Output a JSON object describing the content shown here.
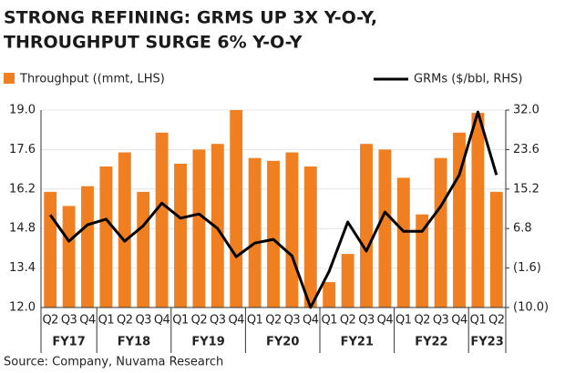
{
  "chart_data": {
    "type": "bar-line",
    "title": [
      "STRONG REFINING: GRMS UP 3X Y-O-Y,",
      "THROUGHPUT SURGE 6% Y-O-Y"
    ],
    "groups": [
      {
        "label": "FY17",
        "quarters": [
          "Q2",
          "Q3",
          "Q4"
        ]
      },
      {
        "label": "FY18",
        "quarters": [
          "Q1",
          "Q2",
          "Q3",
          "Q4"
        ]
      },
      {
        "label": "FY19",
        "quarters": [
          "Q1",
          "Q2",
          "Q3",
          "Q4"
        ]
      },
      {
        "label": "FY20",
        "quarters": [
          "Q1",
          "Q2",
          "Q3",
          "Q4"
        ]
      },
      {
        "label": "FY21",
        "quarters": [
          "Q1",
          "Q2",
          "Q3",
          "Q4"
        ]
      },
      {
        "label": "FY22",
        "quarters": [
          "Q1",
          "Q2",
          "Q3",
          "Q4"
        ]
      },
      {
        "label": "FY23",
        "quarters": [
          "Q1",
          "Q2"
        ]
      }
    ],
    "series": [
      {
        "name": "Throughput ((mmt, LHS)",
        "type": "bar",
        "color": "#f07f22",
        "values": [
          16.1,
          15.6,
          16.3,
          17.0,
          17.5,
          16.1,
          18.2,
          17.1,
          17.6,
          17.8,
          19.0,
          17.3,
          17.2,
          17.5,
          17.0,
          12.9,
          13.9,
          17.8,
          17.6,
          16.6,
          15.3,
          17.3,
          18.2,
          18.9,
          16.1
        ]
      },
      {
        "name": "GRMs ($/bbl, RHS)",
        "type": "line",
        "color": "#000000",
        "axis": "y2",
        "values": [
          9.7,
          4.1,
          7.6,
          8.8,
          4.1,
          7.4,
          12.2,
          9.0,
          9.9,
          6.8,
          0.8,
          3.7,
          4.5,
          1.0,
          -10.0,
          -2.3,
          8.2,
          2.0,
          10.3,
          6.2,
          6.2,
          11.5,
          18.2,
          31.6,
          18.2
        ]
      }
    ],
    "ylim": [
      12.0,
      19.0
    ],
    "yticks": [
      {
        "value": 12.0,
        "label": "12.0"
      },
      13.4,
      14.8,
      16.2,
      17.6,
      {
        "value": 19.0,
        "label": "19.0"
      }
    ],
    "y2lim": [
      -10,
      32
    ],
    "y2ticks": [
      {
        "value": -10,
        "label": "(10.0)"
      },
      {
        "value": -1.6,
        "label": "(1.6)"
      },
      6.8,
      15.2,
      23.6,
      {
        "value": 32,
        "label": "32.0"
      }
    ],
    "grid": true,
    "source": "Source: Company, Nuvama Research"
  }
}
